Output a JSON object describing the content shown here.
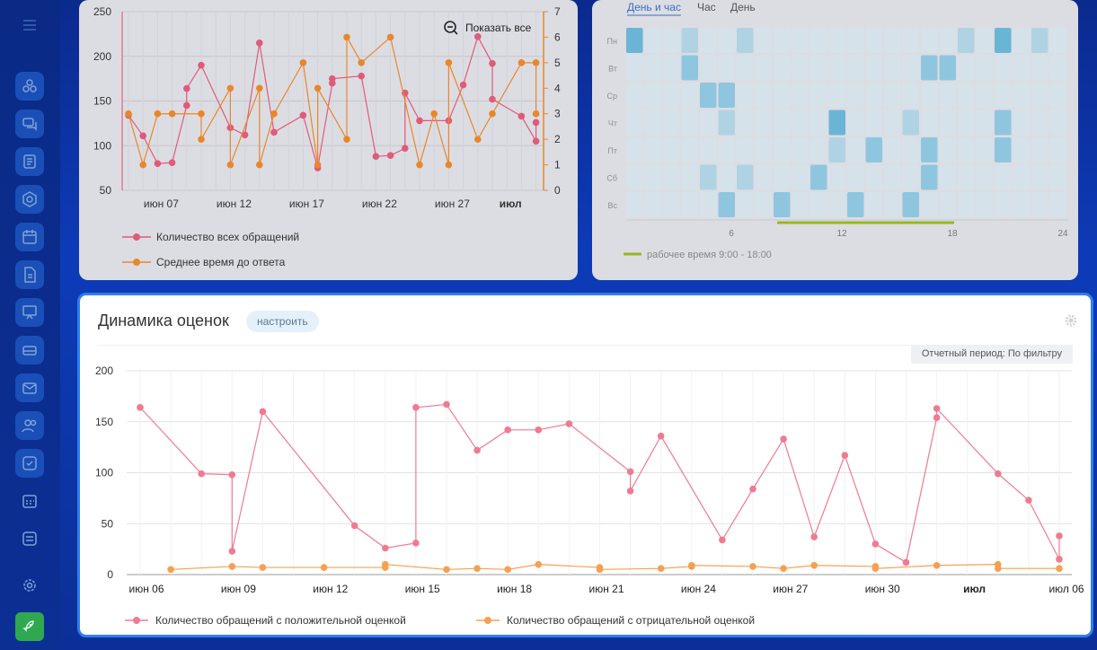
{
  "sidebar": {
    "icons": [
      "menu-icon",
      "deals-icon",
      "chat-icon",
      "tasks-icon",
      "hexagon-icon",
      "calendar-icon",
      "document-icon",
      "presentation-icon",
      "drive-icon",
      "mail-icon",
      "contacts-icon",
      "checklist-icon",
      "schedule-icon",
      "storage-icon",
      "settings-icon",
      "rocket-icon"
    ]
  },
  "top_left_chart": {
    "zoom_label": "Показать все",
    "legend": [
      "Количество всех обращений",
      "Среднее время до ответа"
    ],
    "chart_data": {
      "type": "line",
      "x_tick_labels": [
        "июн 07",
        "июн 12",
        "июн 17",
        "июн 22",
        "июн 27",
        "июл"
      ],
      "y_left_ticks": [
        "250",
        "200",
        "150",
        "100",
        "50"
      ],
      "y_right_ticks": [
        "7",
        "6",
        "5",
        "4",
        "3",
        "2",
        "1",
        "0"
      ],
      "ylim_left": [
        50,
        250
      ],
      "ylim_right": [
        0,
        7
      ],
      "series": [
        {
          "name": "Количество всех обращений",
          "color": "#e05a7a",
          "points": [
            [
              0,
              134
            ],
            [
              1,
              111
            ],
            [
              2,
              80
            ],
            [
              3,
              81
            ],
            [
              4,
              145
            ],
            [
              4,
              164
            ],
            [
              5,
              190
            ],
            [
              7,
              120
            ],
            [
              8,
              112
            ],
            [
              9,
              215
            ],
            [
              10,
              115
            ],
            [
              12,
              134
            ],
            [
              13,
              75
            ],
            [
              14,
              170
            ],
            [
              14,
              175
            ],
            [
              16,
              178
            ],
            [
              17,
              88
            ],
            [
              18,
              89
            ],
            [
              19,
              97
            ],
            [
              19,
              159
            ],
            [
              20,
              128
            ],
            [
              22,
              128
            ],
            [
              23,
              168
            ],
            [
              24,
              222
            ],
            [
              25,
              192
            ],
            [
              25,
              152
            ],
            [
              27,
              133
            ],
            [
              28,
              105
            ],
            [
              28,
              126
            ]
          ]
        },
        {
          "name": "Среднее время до ответа",
          "color": "#e8872a",
          "points": [
            [
              0,
              3
            ],
            [
              1,
              1
            ],
            [
              2,
              3
            ],
            [
              3,
              3
            ],
            [
              5,
              3
            ],
            [
              5,
              2
            ],
            [
              7,
              4
            ],
            [
              7,
              1
            ],
            [
              9,
              4
            ],
            [
              9,
              1
            ],
            [
              10,
              3
            ],
            [
              12,
              5
            ],
            [
              13,
              1
            ],
            [
              13,
              4
            ],
            [
              15,
              2
            ],
            [
              15,
              6
            ],
            [
              16,
              5
            ],
            [
              18,
              6
            ],
            [
              20,
              1
            ],
            [
              21,
              3
            ],
            [
              22,
              1
            ],
            [
              22,
              5
            ],
            [
              24,
              2
            ],
            [
              25,
              3
            ],
            [
              27,
              5
            ],
            [
              28,
              5
            ],
            [
              28,
              3
            ]
          ]
        }
      ]
    }
  },
  "heatmap": {
    "tabs": [
      "День и час",
      "Час",
      "День"
    ],
    "days": [
      "Пн",
      "Вт",
      "Ср",
      "Чт",
      "Пт",
      "Сб",
      "Вс"
    ],
    "x_ticks": [
      "6",
      "12",
      "18",
      "24"
    ],
    "legend": "рабочее время 9:00 - 18:00",
    "cells": [
      [
        0,
        0,
        3
      ],
      [
        0,
        3,
        1
      ],
      [
        0,
        6,
        1
      ],
      [
        0,
        18,
        1
      ],
      [
        0,
        20,
        3
      ],
      [
        0,
        22,
        1
      ],
      [
        1,
        3,
        2
      ],
      [
        1,
        16,
        2
      ],
      [
        1,
        17,
        2
      ],
      [
        2,
        4,
        2
      ],
      [
        2,
        5,
        2
      ],
      [
        3,
        5,
        1
      ],
      [
        3,
        11,
        3
      ],
      [
        3,
        15,
        1
      ],
      [
        3,
        20,
        2
      ],
      [
        4,
        11,
        1
      ],
      [
        4,
        13,
        2
      ],
      [
        4,
        16,
        2
      ],
      [
        4,
        20,
        2
      ],
      [
        5,
        4,
        1
      ],
      [
        5,
        6,
        1
      ],
      [
        5,
        10,
        2
      ],
      [
        5,
        16,
        2
      ],
      [
        6,
        5,
        2
      ],
      [
        6,
        8,
        2
      ],
      [
        6,
        12,
        2
      ],
      [
        6,
        15,
        2
      ]
    ]
  },
  "main": {
    "title": "Динамика оценок",
    "config_label": "настроить",
    "period_label": "Отчетный период: По фильтру",
    "legend_positive": "Количество обращений с положительной оценкой",
    "legend_negative": "Количество обращений с отрицательной оценкой",
    "colors": {
      "positive": "#f07a92",
      "negative": "#f5a050",
      "accent": "#2e7ff0"
    }
  },
  "chart_data": {
    "type": "line",
    "x_tick_labels": [
      "июн 06",
      "июн 09",
      "июн 12",
      "июн 15",
      "июн 18",
      "июн 21",
      "июн 24",
      "июн 27",
      "июн 30",
      "июл",
      "июл 06"
    ],
    "y_ticks": [
      "200",
      "150",
      "100",
      "50",
      "0"
    ],
    "ylim": [
      0,
      200
    ],
    "series": [
      {
        "name": "Количество обращений с положительной оценкой",
        "points": [
          [
            0,
            164
          ],
          [
            2,
            99
          ],
          [
            3,
            98
          ],
          [
            3,
            23
          ],
          [
            4,
            160
          ],
          [
            7,
            48
          ],
          [
            8,
            26
          ],
          [
            9,
            31
          ],
          [
            9,
            164
          ],
          [
            10,
            167
          ],
          [
            11,
            122
          ],
          [
            12,
            142
          ],
          [
            13,
            142
          ],
          [
            14,
            148
          ],
          [
            16,
            101
          ],
          [
            16,
            82
          ],
          [
            17,
            136
          ],
          [
            19,
            34
          ],
          [
            20,
            84
          ],
          [
            21,
            133
          ],
          [
            22,
            37
          ],
          [
            23,
            117
          ],
          [
            24,
            30
          ],
          [
            25,
            12
          ],
          [
            26,
            154
          ],
          [
            26,
            163
          ],
          [
            28,
            99
          ],
          [
            29,
            73
          ],
          [
            30,
            15
          ],
          [
            30,
            38
          ]
        ]
      },
      {
        "name": "Количество обращений с отрицательной оценкой",
        "points": [
          [
            1,
            5
          ],
          [
            3,
            8
          ],
          [
            4,
            7
          ],
          [
            6,
            7
          ],
          [
            8,
            7
          ],
          [
            8,
            10
          ],
          [
            10,
            5
          ],
          [
            11,
            6
          ],
          [
            12,
            5
          ],
          [
            13,
            10
          ],
          [
            15,
            7
          ],
          [
            15,
            5
          ],
          [
            17,
            6
          ],
          [
            18,
            8
          ],
          [
            18,
            9
          ],
          [
            20,
            8
          ],
          [
            21,
            6
          ],
          [
            22,
            9
          ],
          [
            24,
            8
          ],
          [
            24,
            6
          ],
          [
            26,
            9
          ],
          [
            28,
            10
          ],
          [
            28,
            6
          ],
          [
            30,
            6
          ]
        ]
      }
    ]
  }
}
